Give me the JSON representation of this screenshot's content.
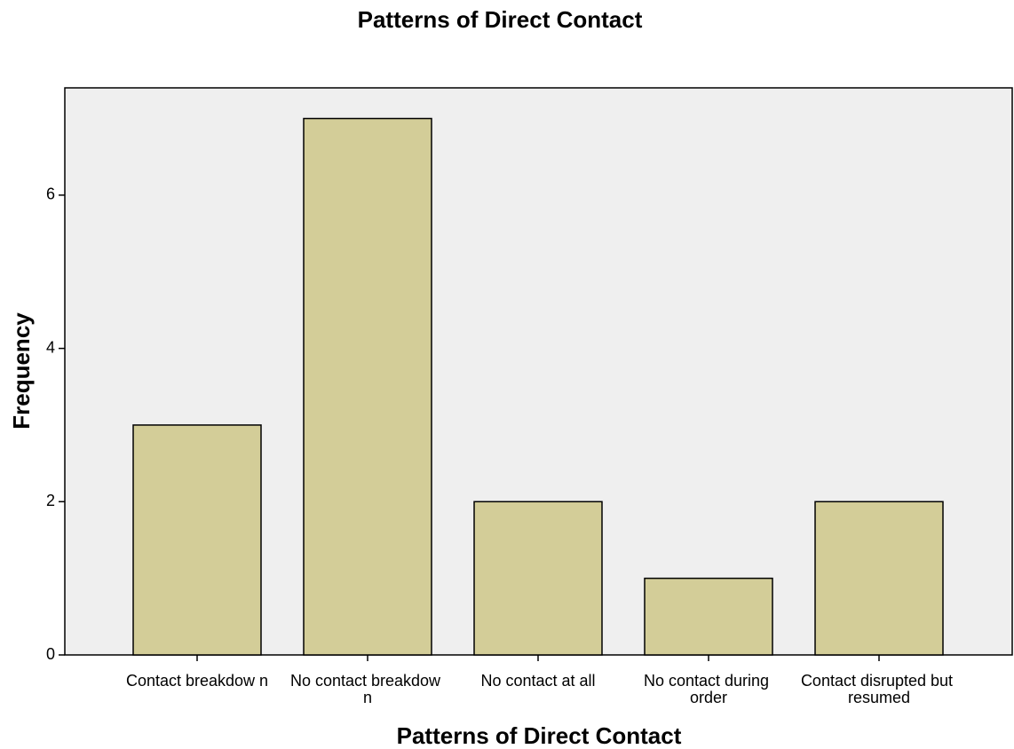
{
  "chart_data": {
    "type": "bar",
    "title": "Patterns of Direct Contact",
    "x_label": "Patterns of Direct Contact",
    "y_label": "Frequency",
    "categories": [
      "Contact breakdow n",
      "No contact breakdow n",
      "No contact at all",
      "No contact during order",
      "Contact disrupted but resumed"
    ],
    "values": [
      3,
      7,
      2,
      1,
      2
    ],
    "color": "#d3cd98",
    "ylim": [
      0,
      7.4
    ],
    "yticks": [
      0,
      2,
      4,
      6
    ],
    "grid": false
  }
}
